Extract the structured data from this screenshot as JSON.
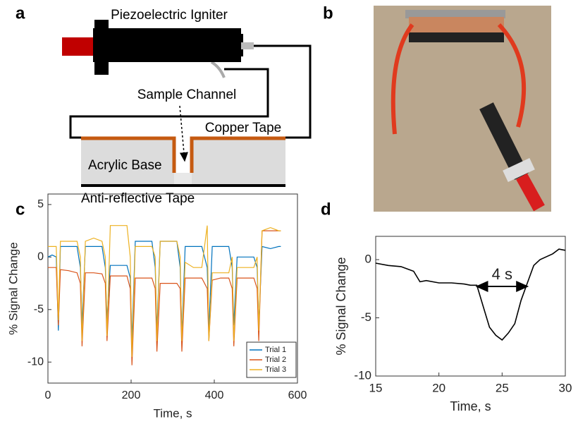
{
  "panels": {
    "a": "a",
    "b": "b",
    "c": "c",
    "d": "d"
  },
  "diagram": {
    "igniter": "Piezoelectric Igniter",
    "channel": "Sample Channel",
    "copper": "Copper Tape",
    "base": "Acrylic Base",
    "tape": "Anti-reflective Tape"
  },
  "chart_data": [
    {
      "type": "line",
      "xlabel": "Time, s",
      "ylabel": "% Signal Change",
      "xlim": [
        0,
        600
      ],
      "ylim": [
        -12,
        6
      ],
      "xticks": [
        0,
        200,
        400,
        600
      ],
      "yticks": [
        -10,
        -5,
        0,
        5
      ],
      "legend": "lower right",
      "x": [
        0,
        10,
        20,
        25,
        30,
        50,
        70,
        78,
        82,
        90,
        110,
        130,
        138,
        142,
        150,
        170,
        190,
        198,
        202,
        210,
        230,
        250,
        258,
        262,
        270,
        290,
        310,
        318,
        322,
        330,
        350,
        370,
        383,
        387,
        395,
        415,
        435,
        443,
        447,
        455,
        475,
        495,
        503,
        507,
        515,
        535,
        555,
        560
      ],
      "series": [
        {
          "name": "Trial 1",
          "color": "#0072BD",
          "values": [
            0,
            0.2,
            0,
            -7,
            1,
            1,
            1,
            -1,
            -6.5,
            1,
            1,
            1,
            -1,
            -6,
            -0.8,
            -0.8,
            -0.8,
            -2,
            -8,
            1.5,
            1.5,
            1.5,
            -1,
            -7,
            1.5,
            1.5,
            1.5,
            -1,
            -7.5,
            1,
            1,
            1,
            -1,
            -7,
            1,
            1,
            1,
            -1,
            -6.5,
            0,
            0,
            0,
            -1,
            -6.5,
            1,
            0.8,
            1,
            1
          ]
        },
        {
          "name": "Trial 2",
          "color": "#D95319",
          "values": [
            -1,
            -1,
            -1,
            -6.5,
            -1.2,
            -1.3,
            -1.5,
            -2.5,
            -8.5,
            -1.5,
            -1.5,
            -1.6,
            -2.5,
            -8,
            -1.8,
            -1.8,
            -1.8,
            -3,
            -10.3,
            -2,
            -2,
            -2,
            -3,
            -9,
            -2.5,
            -2.5,
            -2.5,
            -3,
            -9,
            -2,
            -2,
            -2,
            -3,
            -8,
            -2.2,
            -2,
            -2,
            -3,
            -8.5,
            -2,
            -2,
            -2,
            -3,
            -8,
            2.5,
            2.5,
            2.5,
            2.5
          ]
        },
        {
          "name": "Trial 3",
          "color": "#EDB120",
          "values": [
            1,
            1,
            1,
            -6,
            1.5,
            1.5,
            1.5,
            0,
            -8,
            1.5,
            1.8,
            1.5,
            0,
            -7.5,
            3,
            3,
            3,
            0,
            -9.5,
            1,
            1,
            1,
            0,
            -8,
            1.5,
            1.5,
            1.5,
            0,
            -8,
            -0.5,
            -1,
            -1,
            3,
            -8,
            -1.5,
            -1.5,
            -1.5,
            0,
            -8,
            -1,
            -1,
            -1,
            0,
            -7,
            2.5,
            2.8,
            2.5,
            2.5
          ]
        }
      ]
    },
    {
      "type": "line",
      "xlabel": "Time, s",
      "ylabel": "% Signal Change",
      "xlim": [
        15,
        30
      ],
      "ylim": [
        -10,
        2
      ],
      "xticks": [
        15,
        20,
        25,
        30
      ],
      "yticks": [
        -10,
        -5,
        0
      ],
      "x": [
        15,
        16,
        17,
        18,
        18.5,
        19,
        20,
        21,
        22,
        22.5,
        23,
        23.5,
        24,
        24.5,
        25,
        25.5,
        26,
        26.5,
        27,
        27.5,
        28,
        29,
        29.5,
        30
      ],
      "series": [
        {
          "color": "#000000",
          "values": [
            -0.3,
            -0.5,
            -0.6,
            -1,
            -1.9,
            -1.8,
            -2,
            -2,
            -2.1,
            -2.2,
            -2.2,
            -4,
            -5.8,
            -6.5,
            -6.9,
            -6.3,
            -5.5,
            -3.5,
            -2,
            -0.5,
            0,
            0.5,
            0.9,
            0.8
          ]
        }
      ],
      "annotation": {
        "text": "4 s",
        "x": [
          23,
          27
        ],
        "y": -2.3
      }
    }
  ]
}
